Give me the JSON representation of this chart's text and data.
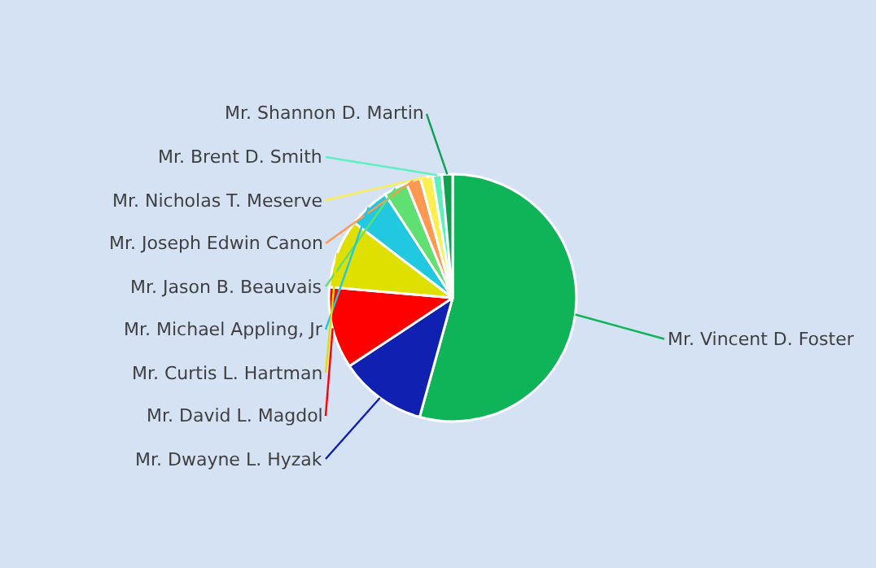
{
  "chart_data": {
    "type": "pie",
    "legend": false,
    "categories": [
      "Mr. Vincent D. Foster",
      "Mr. Dwayne L. Hyzak",
      "Mr. David L. Magdol",
      "Mr. Curtis L. Hartman",
      "Mr. Michael Appling, Jr",
      "Mr. Jason B. Beauvais",
      "Mr. Joseph Edwin Canon",
      "Mr. Nicholas T. Meserve",
      "Mr. Brent D. Smith",
      "Mr. Shannon D. Martin"
    ],
    "values": [
      54.3,
      11.4,
      10.7,
      9.0,
      5.4,
      3.1,
      1.9,
      1.6,
      1.2,
      1.4
    ],
    "colors": [
      "#10b458",
      "#1020b0",
      "#ff0000",
      "#e0e000",
      "#20c8e0",
      "#60e070",
      "#ff9850",
      "#ffee50",
      "#60f0c0",
      "#10a050"
    ]
  }
}
